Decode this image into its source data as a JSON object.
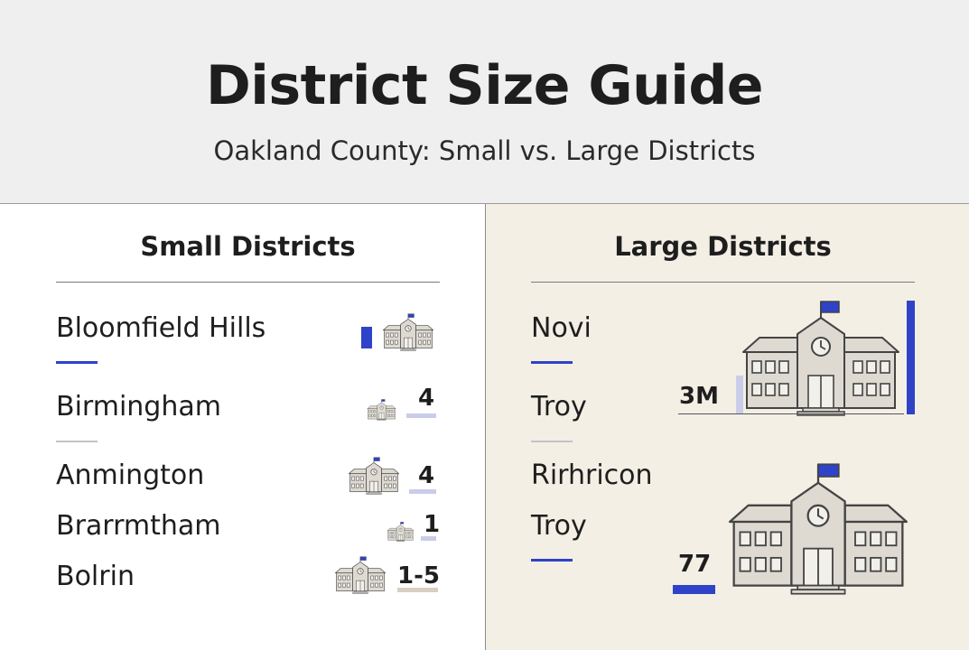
{
  "header": {
    "title": "District Size Guide",
    "subtitle": "Oakland County: Small vs. Large Districts"
  },
  "small": {
    "title": "Small Districts",
    "items": [
      {
        "name": "Bloomfield Hills",
        "value": ""
      },
      {
        "name": "Birmingham",
        "value": "4"
      },
      {
        "name": "Anmington",
        "value": "4"
      },
      {
        "name": "Brarrmtham",
        "value": "1"
      },
      {
        "name": "Bolrin",
        "value": "1-5"
      }
    ]
  },
  "large": {
    "title": "Large Districts",
    "items": [
      {
        "name": "Novi"
      },
      {
        "name": "Troy"
      },
      {
        "name": "Rirhricon"
      },
      {
        "name": "Troy"
      }
    ],
    "values": [
      "3M",
      "77"
    ]
  },
  "colors": {
    "accent": "#2e43c8",
    "header_bg": "#efefef",
    "right_panel_bg": "#f3efe5",
    "building": "#dedad2"
  },
  "icons": {
    "school": "school-building-icon",
    "flag": "flag-icon",
    "clock": "clock-icon"
  }
}
